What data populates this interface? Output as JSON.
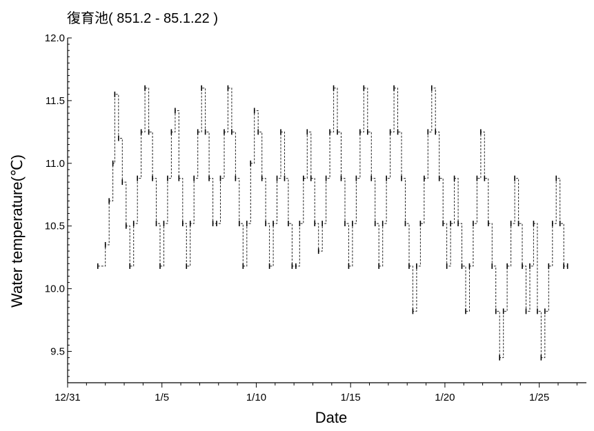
{
  "chart_data": {
    "type": "line",
    "title": "復育池( 851.2 - 85.1.22 )",
    "xlabel": "Date",
    "ylabel": "Water temperature(℃)",
    "x_ticks": [
      "12/31",
      "1/5",
      "1/10",
      "1/15",
      "1/20",
      "1/25"
    ],
    "x_tick_days": [
      0,
      5,
      10,
      15,
      20,
      25
    ],
    "xlim": [
      0,
      27.5
    ],
    "y_ticks": [
      "9.5",
      "10.0",
      "10.5",
      "11.0",
      "11.5",
      "12.0"
    ],
    "y_tick_values": [
      9.5,
      10.0,
      10.5,
      11.0,
      11.5,
      12.0
    ],
    "ylim": [
      9.25,
      12.0
    ],
    "grid": false,
    "series": [
      {
        "values": [
          [
            1.6,
            10.18
          ],
          [
            2.0,
            10.35
          ],
          [
            2.2,
            10.7
          ],
          [
            2.4,
            11.0
          ],
          [
            2.5,
            11.55
          ],
          [
            2.7,
            11.2
          ],
          [
            2.9,
            10.85
          ],
          [
            3.1,
            10.5
          ],
          [
            3.3,
            10.18
          ],
          [
            3.5,
            10.52
          ],
          [
            3.7,
            10.88
          ],
          [
            3.9,
            11.25
          ],
          [
            4.1,
            11.6
          ],
          [
            4.3,
            11.25
          ],
          [
            4.5,
            10.88
          ],
          [
            4.7,
            10.52
          ],
          [
            4.9,
            10.18
          ],
          [
            5.1,
            10.52
          ],
          [
            5.3,
            10.88
          ],
          [
            5.5,
            11.25
          ],
          [
            5.7,
            11.42
          ],
          [
            5.9,
            10.88
          ],
          [
            6.1,
            10.52
          ],
          [
            6.3,
            10.18
          ],
          [
            6.5,
            10.52
          ],
          [
            6.7,
            10.88
          ],
          [
            6.9,
            11.25
          ],
          [
            7.1,
            11.6
          ],
          [
            7.3,
            11.25
          ],
          [
            7.5,
            10.88
          ],
          [
            7.7,
            10.52
          ],
          [
            7.9,
            10.52
          ],
          [
            8.1,
            10.88
          ],
          [
            8.3,
            11.25
          ],
          [
            8.5,
            11.6
          ],
          [
            8.7,
            11.25
          ],
          [
            8.9,
            10.88
          ],
          [
            9.1,
            10.52
          ],
          [
            9.3,
            10.18
          ],
          [
            9.5,
            10.52
          ],
          [
            9.7,
            11.0
          ],
          [
            9.9,
            11.42
          ],
          [
            10.1,
            11.25
          ],
          [
            10.3,
            10.88
          ],
          [
            10.5,
            10.52
          ],
          [
            10.7,
            10.18
          ],
          [
            10.9,
            10.52
          ],
          [
            11.1,
            10.88
          ],
          [
            11.3,
            11.25
          ],
          [
            11.5,
            10.88
          ],
          [
            11.7,
            10.52
          ],
          [
            11.9,
            10.18
          ],
          [
            12.1,
            10.18
          ],
          [
            12.3,
            10.52
          ],
          [
            12.5,
            10.88
          ],
          [
            12.7,
            11.25
          ],
          [
            12.9,
            10.88
          ],
          [
            13.1,
            10.52
          ],
          [
            13.3,
            10.3
          ],
          [
            13.5,
            10.52
          ],
          [
            13.7,
            10.88
          ],
          [
            13.9,
            11.25
          ],
          [
            14.1,
            11.6
          ],
          [
            14.3,
            11.25
          ],
          [
            14.5,
            10.88
          ],
          [
            14.7,
            10.52
          ],
          [
            14.9,
            10.18
          ],
          [
            15.1,
            10.52
          ],
          [
            15.3,
            10.88
          ],
          [
            15.5,
            11.25
          ],
          [
            15.7,
            11.6
          ],
          [
            15.9,
            11.25
          ],
          [
            16.1,
            10.88
          ],
          [
            16.3,
            10.52
          ],
          [
            16.5,
            10.18
          ],
          [
            16.7,
            10.52
          ],
          [
            16.9,
            10.88
          ],
          [
            17.1,
            11.25
          ],
          [
            17.3,
            11.6
          ],
          [
            17.5,
            11.25
          ],
          [
            17.7,
            10.88
          ],
          [
            17.9,
            10.52
          ],
          [
            18.1,
            10.18
          ],
          [
            18.3,
            9.82
          ],
          [
            18.5,
            10.18
          ],
          [
            18.7,
            10.52
          ],
          [
            18.9,
            10.88
          ],
          [
            19.1,
            11.25
          ],
          [
            19.3,
            11.6
          ],
          [
            19.5,
            11.25
          ],
          [
            19.7,
            10.88
          ],
          [
            19.9,
            10.52
          ],
          [
            20.1,
            10.18
          ],
          [
            20.3,
            10.52
          ],
          [
            20.5,
            10.88
          ],
          [
            20.7,
            10.52
          ],
          [
            20.9,
            10.18
          ],
          [
            21.1,
            9.82
          ],
          [
            21.3,
            10.18
          ],
          [
            21.5,
            10.52
          ],
          [
            21.7,
            10.88
          ],
          [
            21.9,
            11.25
          ],
          [
            22.1,
            10.88
          ],
          [
            22.3,
            10.52
          ],
          [
            22.5,
            10.18
          ],
          [
            22.7,
            9.82
          ],
          [
            22.9,
            9.45
          ],
          [
            23.1,
            9.82
          ],
          [
            23.3,
            10.18
          ],
          [
            23.5,
            10.52
          ],
          [
            23.7,
            10.88
          ],
          [
            23.9,
            10.52
          ],
          [
            24.1,
            10.18
          ],
          [
            24.3,
            9.82
          ],
          [
            24.5,
            10.18
          ],
          [
            24.7,
            10.52
          ],
          [
            24.9,
            9.82
          ],
          [
            25.1,
            9.45
          ],
          [
            25.3,
            9.82
          ],
          [
            25.5,
            10.18
          ],
          [
            25.7,
            10.52
          ],
          [
            25.9,
            10.88
          ],
          [
            26.1,
            10.52
          ],
          [
            26.3,
            10.18
          ],
          [
            26.5,
            10.18
          ]
        ]
      }
    ]
  }
}
